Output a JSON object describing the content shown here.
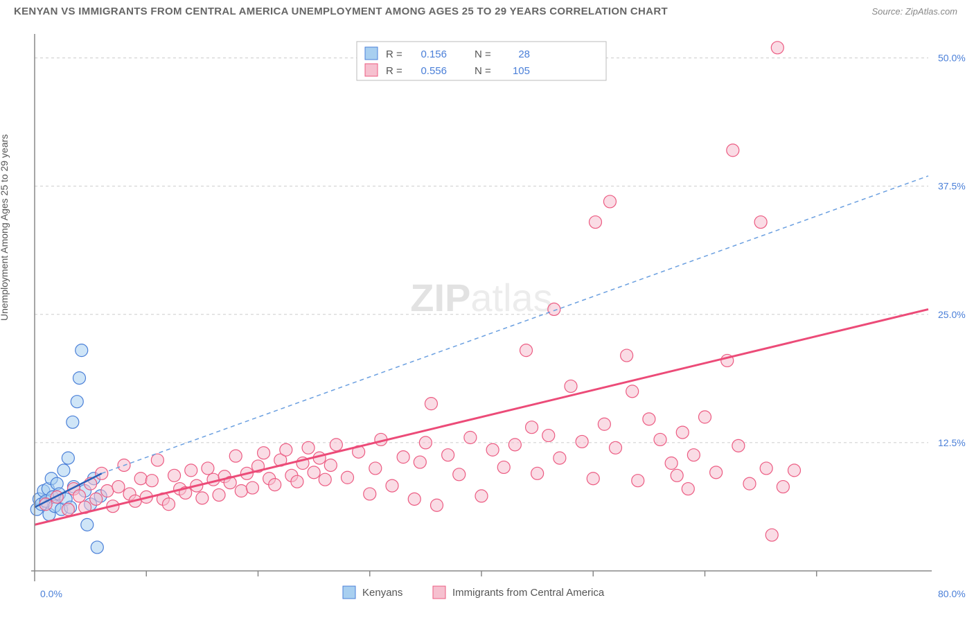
{
  "title": "KENYAN VS IMMIGRANTS FROM CENTRAL AMERICA UNEMPLOYMENT AMONG AGES 25 TO 29 YEARS CORRELATION CHART",
  "source": "Source: ZipAtlas.com",
  "ylabel": "Unemployment Among Ages 25 to 29 years",
  "watermark_a": "ZIP",
  "watermark_b": "atlas",
  "chart": {
    "type": "scatter",
    "xlim": [
      0,
      80
    ],
    "ylim": [
      0,
      52
    ],
    "x_ticks": [
      0,
      80
    ],
    "x_tick_labels": [
      "0.0%",
      "80.0%"
    ],
    "y_ticks": [
      12.5,
      25.0,
      37.5,
      50.0
    ],
    "y_tick_labels": [
      "12.5%",
      "25.0%",
      "37.5%",
      "50.0%"
    ],
    "x_minor_ticks": [
      10,
      20,
      30,
      40,
      50,
      60,
      70
    ],
    "grid_color": "#cccccc",
    "background_color": "#ffffff",
    "marker_radius": 9,
    "series": [
      {
        "name": "Kenyans",
        "color_fill": "#a8cff0",
        "color_stroke": "#4a7fd8",
        "R": 0.156,
        "N": 28,
        "trend": {
          "x0": 0,
          "y0": 6.2,
          "x1": 6,
          "y1": 9.5,
          "dash_to_x": 80,
          "dash_to_y": 38.5
        },
        "points": [
          [
            0.2,
            6.0
          ],
          [
            0.4,
            7.0
          ],
          [
            0.6,
            6.5
          ],
          [
            0.8,
            7.8
          ],
          [
            1.0,
            6.8
          ],
          [
            1.2,
            8.0
          ],
          [
            1.3,
            5.5
          ],
          [
            1.5,
            9.0
          ],
          [
            1.6,
            7.2
          ],
          [
            1.8,
            6.3
          ],
          [
            2.0,
            8.5
          ],
          [
            2.2,
            7.5
          ],
          [
            2.4,
            6.0
          ],
          [
            2.6,
            9.8
          ],
          [
            2.8,
            7.0
          ],
          [
            3.0,
            11.0
          ],
          [
            3.2,
            6.2
          ],
          [
            3.4,
            14.5
          ],
          [
            3.5,
            8.2
          ],
          [
            3.8,
            16.5
          ],
          [
            4.0,
            18.8
          ],
          [
            4.2,
            21.5
          ],
          [
            4.5,
            7.8
          ],
          [
            4.7,
            4.5
          ],
          [
            5.0,
            6.5
          ],
          [
            5.3,
            9.0
          ],
          [
            5.6,
            2.3
          ],
          [
            5.9,
            7.3
          ]
        ]
      },
      {
        "name": "Immigrants from Central America",
        "color_fill": "#f6c0cf",
        "color_stroke": "#ec5b82",
        "R": 0.556,
        "N": 105,
        "trend": {
          "x0": 0,
          "y0": 4.5,
          "x1": 80,
          "y1": 25.5
        },
        "points": [
          [
            1,
            6.5
          ],
          [
            2,
            7.2
          ],
          [
            3,
            6.0
          ],
          [
            3.5,
            8.0
          ],
          [
            4,
            7.3
          ],
          [
            4.5,
            6.2
          ],
          [
            5,
            8.5
          ],
          [
            5.5,
            7.0
          ],
          [
            6,
            9.5
          ],
          [
            6.5,
            7.8
          ],
          [
            7,
            6.3
          ],
          [
            7.5,
            8.2
          ],
          [
            8,
            10.3
          ],
          [
            8.5,
            7.5
          ],
          [
            9,
            6.8
          ],
          [
            9.5,
            9.0
          ],
          [
            10,
            7.2
          ],
          [
            10.5,
            8.8
          ],
          [
            11,
            10.8
          ],
          [
            11.5,
            7.0
          ],
          [
            12,
            6.5
          ],
          [
            12.5,
            9.3
          ],
          [
            13,
            8.0
          ],
          [
            13.5,
            7.6
          ],
          [
            14,
            9.8
          ],
          [
            14.5,
            8.3
          ],
          [
            15,
            7.1
          ],
          [
            15.5,
            10.0
          ],
          [
            16,
            8.9
          ],
          [
            16.5,
            7.4
          ],
          [
            17,
            9.2
          ],
          [
            17.5,
            8.6
          ],
          [
            18,
            11.2
          ],
          [
            18.5,
            7.8
          ],
          [
            19,
            9.5
          ],
          [
            19.5,
            8.1
          ],
          [
            20,
            10.2
          ],
          [
            20.5,
            11.5
          ],
          [
            21,
            9.0
          ],
          [
            21.5,
            8.4
          ],
          [
            22,
            10.8
          ],
          [
            22.5,
            11.8
          ],
          [
            23,
            9.3
          ],
          [
            23.5,
            8.7
          ],
          [
            24,
            10.5
          ],
          [
            24.5,
            12.0
          ],
          [
            25,
            9.6
          ],
          [
            25.5,
            11.0
          ],
          [
            26,
            8.9
          ],
          [
            26.5,
            10.3
          ],
          [
            27,
            12.3
          ],
          [
            28,
            9.1
          ],
          [
            29,
            11.6
          ],
          [
            30,
            7.5
          ],
          [
            30.5,
            10.0
          ],
          [
            31,
            12.8
          ],
          [
            32,
            8.3
          ],
          [
            33,
            11.1
          ],
          [
            34,
            7.0
          ],
          [
            34.5,
            10.6
          ],
          [
            35,
            12.5
          ],
          [
            35.5,
            16.3
          ],
          [
            36,
            6.4
          ],
          [
            37,
            11.3
          ],
          [
            38,
            9.4
          ],
          [
            39,
            13.0
          ],
          [
            40,
            7.3
          ],
          [
            41,
            11.8
          ],
          [
            42,
            10.1
          ],
          [
            43,
            12.3
          ],
          [
            44,
            21.5
          ],
          [
            44.5,
            14.0
          ],
          [
            45,
            9.5
          ],
          [
            46,
            13.2
          ],
          [
            46.5,
            25.5
          ],
          [
            47,
            11.0
          ],
          [
            48,
            18.0
          ],
          [
            49,
            12.6
          ],
          [
            50,
            9.0
          ],
          [
            50.2,
            34.0
          ],
          [
            51,
            14.3
          ],
          [
            51.5,
            36.0
          ],
          [
            52,
            12.0
          ],
          [
            53,
            21.0
          ],
          [
            53.5,
            17.5
          ],
          [
            54,
            8.8
          ],
          [
            55,
            14.8
          ],
          [
            56,
            12.8
          ],
          [
            57,
            10.5
          ],
          [
            57.5,
            9.3
          ],
          [
            58,
            13.5
          ],
          [
            58.5,
            8.0
          ],
          [
            59,
            11.3
          ],
          [
            60,
            15.0
          ],
          [
            61,
            9.6
          ],
          [
            62,
            20.5
          ],
          [
            62.5,
            41.0
          ],
          [
            63,
            12.2
          ],
          [
            64,
            8.5
          ],
          [
            65,
            34.0
          ],
          [
            65.5,
            10.0
          ],
          [
            66,
            3.5
          ],
          [
            66.5,
            51.0
          ],
          [
            67,
            8.2
          ],
          [
            68,
            9.8
          ]
        ]
      }
    ],
    "stats_legend_labels": {
      "R": "R  =",
      "N": "N  ="
    },
    "bottom_legend": [
      "Kenyans",
      "Immigrants from Central America"
    ]
  }
}
